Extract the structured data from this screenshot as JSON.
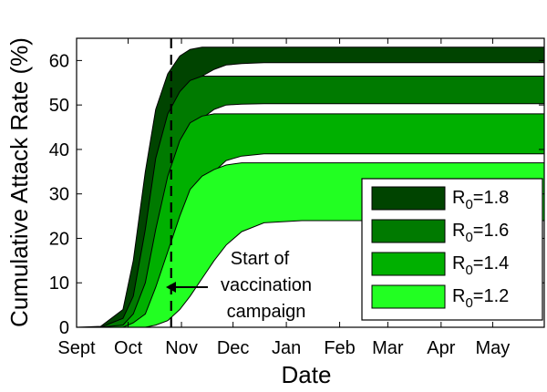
{
  "chart_data": {
    "type": "area",
    "xlabel": "Date",
    "ylabel": "Cumulative Attack Rate (%)",
    "x_ticks": [
      "Sept",
      "Oct",
      "Nov",
      "Dec",
      "Jan",
      "Feb",
      "Mar",
      "Apr",
      "May"
    ],
    "y_ticks": [
      "0",
      "10",
      "20",
      "30",
      "40",
      "50",
      "60"
    ],
    "ylim": [
      0,
      65
    ],
    "xlim": [
      "2009-09-01",
      "2010-05-31"
    ],
    "grid": false,
    "legend_position": "bottom-right",
    "vaccination_start": "2009-10-26",
    "annotation": [
      "Start of",
      "vaccination",
      "campaign"
    ],
    "band_x": [
      "2009-09-01",
      "2009-09-15",
      "2009-09-28",
      "2009-10-04",
      "2009-10-11",
      "2009-10-17",
      "2009-10-24",
      "2009-10-31",
      "2009-11-06",
      "2009-11-13",
      "2009-11-20",
      "2009-11-27",
      "2009-12-06",
      "2009-12-19",
      "2010-01-10",
      "2010-05-31"
    ],
    "series": [
      {
        "name": "R",
        "sub": "0",
        "eq": "=1.8",
        "color": "#004400",
        "upper": [
          0,
          0.2,
          4,
          15,
          35,
          49,
          57,
          61,
          62.5,
          63,
          63,
          63,
          63,
          63,
          63,
          63
        ],
        "lower": [
          0,
          0,
          0.5,
          3,
          11,
          28,
          41,
          49,
          54,
          56.5,
          58,
          59,
          59.3,
          59.5,
          59.5,
          59.5
        ]
      },
      {
        "name": "R",
        "sub": "0",
        "eq": "=1.6",
        "color": "#007a00",
        "upper": [
          0,
          0,
          2,
          7,
          22,
          38,
          48,
          53,
          55.5,
          56.5,
          56.5,
          56.5,
          56.5,
          56.5,
          56.5,
          56.5
        ],
        "lower": [
          0,
          0,
          0,
          1,
          4,
          12,
          25,
          35,
          42,
          47,
          49,
          50,
          50.2,
          50.3,
          50.3,
          50.3
        ]
      },
      {
        "name": "R",
        "sub": "0",
        "eq": "=1.4",
        "color": "#00b000",
        "upper": [
          0,
          0,
          0.5,
          3,
          10,
          22,
          34,
          42,
          46,
          47.5,
          48,
          48,
          48,
          48,
          48,
          48
        ],
        "lower": [
          0,
          0,
          0,
          0,
          1,
          4,
          11,
          20,
          28,
          32,
          35,
          37.5,
          38.5,
          39,
          39,
          39
        ]
      },
      {
        "name": "R",
        "sub": "0",
        "eq": "=1.2",
        "color": "#22ff22",
        "upper": [
          0,
          0,
          0,
          1,
          3,
          9,
          17,
          25,
          31,
          34,
          35.5,
          36.5,
          37,
          37,
          37,
          37
        ],
        "lower": [
          0,
          0,
          0,
          0,
          0,
          0.5,
          1.5,
          4,
          7,
          11,
          15,
          18.5,
          21.5,
          23.5,
          24,
          24
        ]
      }
    ]
  }
}
